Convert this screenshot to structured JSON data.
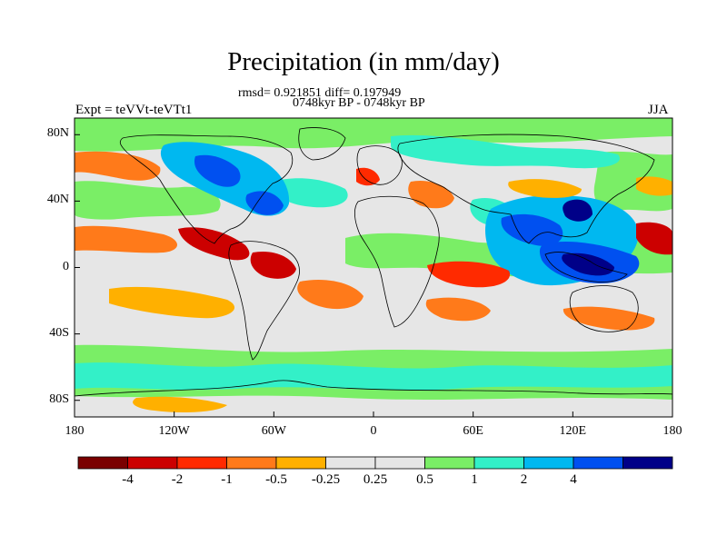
{
  "title": "Precipitation (in mm/day)",
  "stats_line": "rmsd= 0.921851  diff= 0.197949",
  "period_line": "0748kyr BP - 0748kyr BP",
  "experiment_label": "Expt = teVVt-teVTt1",
  "season_label": "JJA",
  "lat_ticks": [
    {
      "label": "80N",
      "lat": 80
    },
    {
      "label": "40N",
      "lat": 40
    },
    {
      "label": "0",
      "lat": 0
    },
    {
      "label": "40S",
      "lat": -40
    },
    {
      "label": "80S",
      "lat": -80
    }
  ],
  "lon_ticks": [
    {
      "label": "180",
      "lon": -180
    },
    {
      "label": "120W",
      "lon": -120
    },
    {
      "label": "60W",
      "lon": -60
    },
    {
      "label": "0",
      "lon": 0
    },
    {
      "label": "60E",
      "lon": 60
    },
    {
      "label": "120E",
      "lon": 120
    },
    {
      "label": "180",
      "lon": 180
    }
  ],
  "colorbar": {
    "colors": [
      "#7a0000",
      "#cc0000",
      "#ff2a00",
      "#ff7a1a",
      "#ffb000",
      "#e6e6e6",
      "#e6e6e6",
      "#7aee66",
      "#33f0c8",
      "#00b8f0",
      "#0050f0",
      "#000088"
    ],
    "labels": [
      "-4",
      "-2",
      "-1",
      "-0.5",
      "-0.25",
      "0.25",
      "0.5",
      "1",
      "2",
      "4"
    ]
  },
  "anomaly_colors": {
    "dark_red": "#7a0000",
    "red": "#cc0000",
    "orange_red": "#ff2a00",
    "orange": "#ff7a1a",
    "yellow_orange": "#ffb000",
    "neutral": "#e6e6e6",
    "green": "#7aee66",
    "teal": "#33f0c8",
    "light_blue": "#00b8f0",
    "blue": "#0050f0",
    "navy": "#000088"
  }
}
